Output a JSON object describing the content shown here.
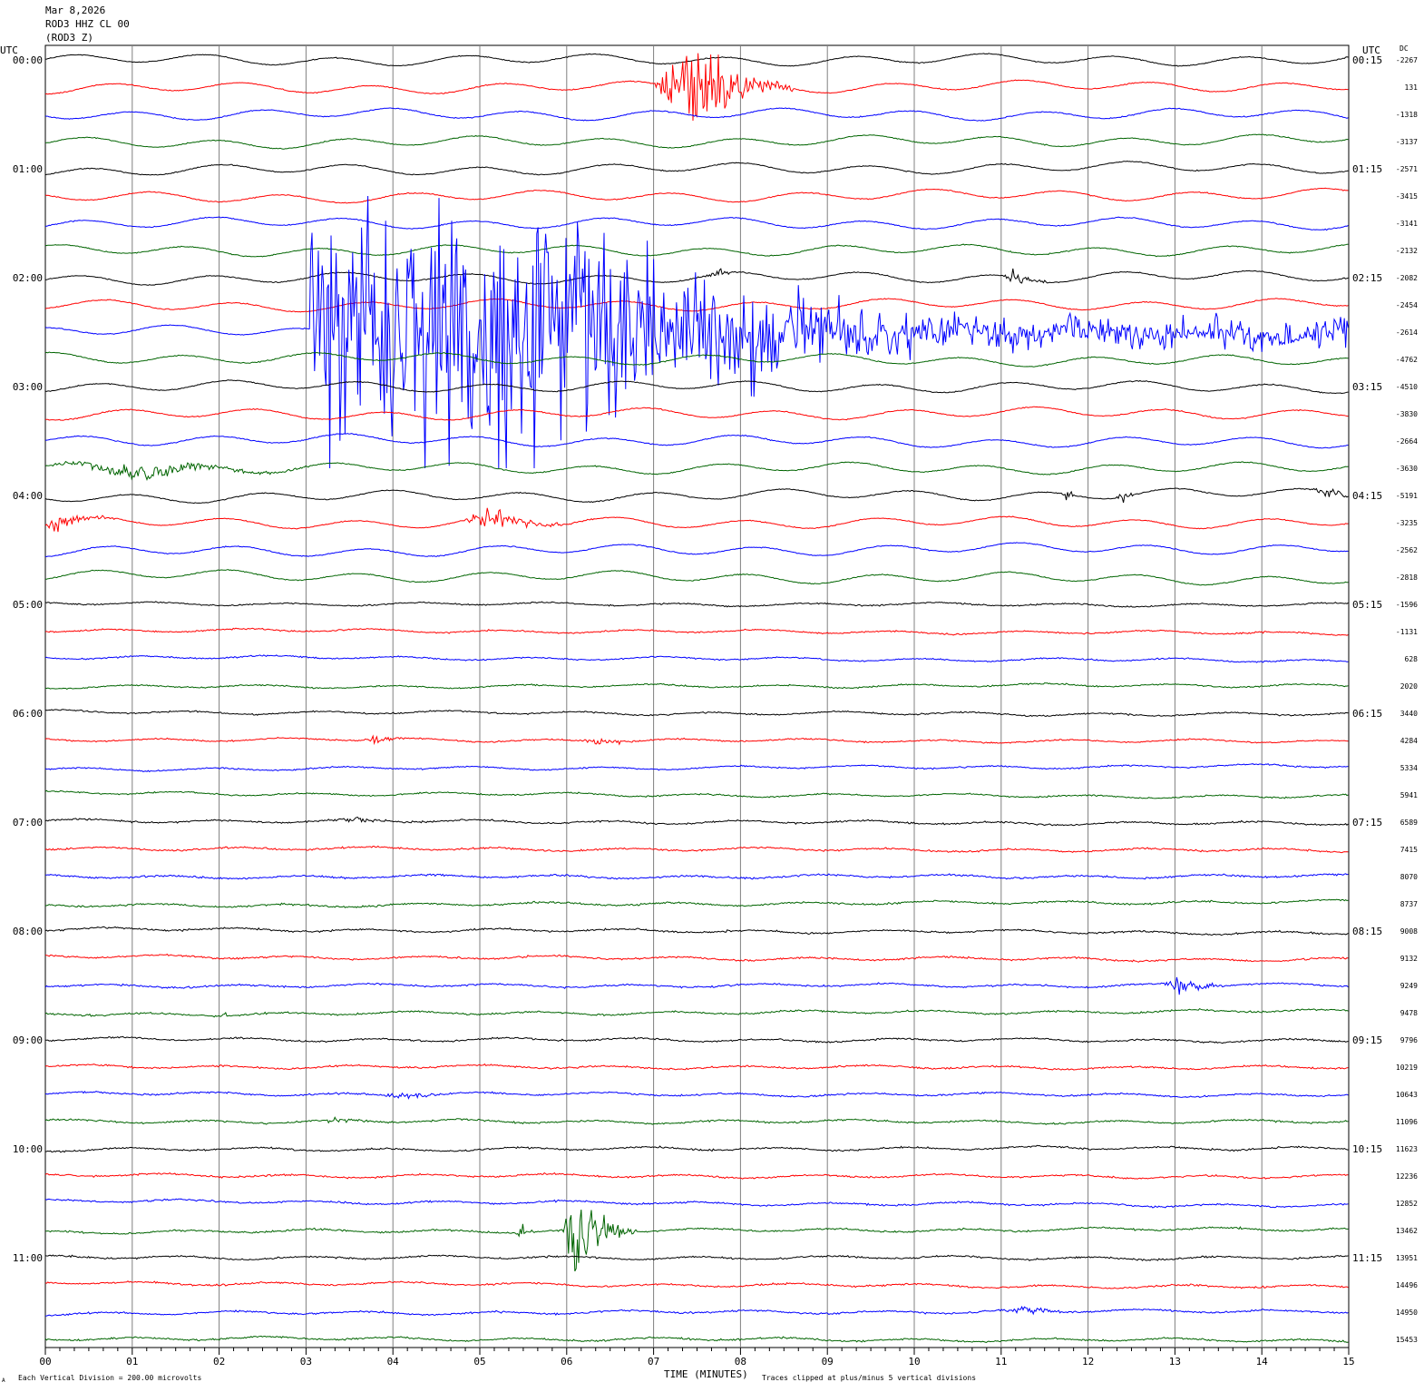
{
  "header": {
    "date": "Mar 8,2026",
    "station": "ROD3 HHZ CL 00",
    "component": "(ROD3 Z)"
  },
  "left_axis_title": "UTC",
  "right_axis_title": "UTC",
  "dc_title": "DC",
  "footer": {
    "scale_note": "Each Vertical Division =  200.00 microvolts",
    "clip_note": "Traces clipped at plus/minus 5 vertical divisions",
    "corner_mark": "A"
  },
  "colors": {
    "black": "#000000",
    "red": "#ff0000",
    "blue": "#0000ff",
    "green": "#006400",
    "grid": "#808080"
  },
  "chart_data": {
    "type": "line",
    "title": "",
    "xlabel": "TIME (MINUTES)",
    "ylabel": "",
    "x_range": [
      0,
      15
    ],
    "x_ticks": [
      "00",
      "01",
      "02",
      "03",
      "04",
      "05",
      "06",
      "07",
      "08",
      "09",
      "10",
      "11",
      "12",
      "13",
      "14",
      "15"
    ],
    "grid": true,
    "color_cycle": [
      "black",
      "red",
      "blue",
      "green"
    ],
    "left_time_labels": [
      "00:00",
      "01:00",
      "02:00",
      "03:00",
      "04:00",
      "05:00",
      "06:00",
      "07:00",
      "08:00",
      "09:00",
      "10:00",
      "11:00"
    ],
    "right_time_labels": [
      "00:15",
      "01:15",
      "02:15",
      "03:15",
      "04:15",
      "05:15",
      "06:15",
      "07:15",
      "08:15",
      "09:15",
      "10:15",
      "11:15"
    ],
    "dc_offsets": [
      "-2267",
      "131",
      "-1318",
      "-3137",
      "-2571",
      "-3415",
      "-3141",
      "-2132",
      "-2082",
      "-2454",
      "-2614",
      "-4762",
      "-4510",
      "-3830",
      "-2664",
      "-3630",
      "-5191",
      "-3235",
      "-2562",
      "-2818",
      "-1596",
      "-1131",
      "628",
      "2020",
      "3440",
      "4284",
      "5334",
      "5941",
      "6589",
      "7415",
      "8070",
      "8737",
      "9008",
      "9132",
      "9249",
      "9478",
      "9796",
      "10219",
      "10643",
      "11096",
      "11623",
      "12236",
      "12852",
      "13462",
      "13951",
      "14496",
      "14950",
      "15453"
    ],
    "events": [
      {
        "trace": 1,
        "start_min": 7.0,
        "end_min": 8.6,
        "peak_min": 7.42,
        "amplitude": "large",
        "color": "red"
      },
      {
        "trace": 8,
        "start_min": 7.5,
        "end_min": 8.1,
        "peak_min": 7.8,
        "amplitude": "small",
        "color": "black"
      },
      {
        "trace": 8,
        "start_min": 11.0,
        "end_min": 11.6,
        "peak_min": 11.15,
        "amplitude": "medium",
        "color": "black"
      },
      {
        "trace": 10,
        "start_min": 3.05,
        "end_min": 15.0,
        "peak_min": 3.1,
        "amplitude": "clipped",
        "color": "blue"
      },
      {
        "trace": 15,
        "start_min": 0.0,
        "end_min": 3.05,
        "peak_min": 1.0,
        "amplitude": "medium",
        "color": "green"
      },
      {
        "trace": 16,
        "start_min": 11.7,
        "end_min": 11.85,
        "peak_min": 11.75,
        "amplitude": "medium",
        "color": "black"
      },
      {
        "trace": 16,
        "start_min": 12.3,
        "end_min": 12.6,
        "peak_min": 12.4,
        "amplitude": "medium",
        "color": "black"
      },
      {
        "trace": 16,
        "start_min": 14.5,
        "end_min": 15.0,
        "peak_min": 14.8,
        "amplitude": "medium",
        "color": "black"
      },
      {
        "trace": 17,
        "start_min": 0.0,
        "end_min": 0.9,
        "peak_min": 0.1,
        "amplitude": "medium",
        "color": "red"
      },
      {
        "trace": 17,
        "start_min": 4.75,
        "end_min": 6.3,
        "peak_min": 5.1,
        "amplitude": "medium",
        "color": "red"
      },
      {
        "trace": 25,
        "start_min": 3.6,
        "end_min": 4.2,
        "peak_min": 3.8,
        "amplitude": "small",
        "color": "red"
      },
      {
        "trace": 25,
        "start_min": 6.0,
        "end_min": 7.0,
        "peak_min": 6.4,
        "amplitude": "small",
        "color": "red"
      },
      {
        "trace": 28,
        "start_min": 3.3,
        "end_min": 4.0,
        "peak_min": 3.6,
        "amplitude": "small",
        "color": "black"
      },
      {
        "trace": 34,
        "start_min": 12.8,
        "end_min": 13.7,
        "peak_min": 13.1,
        "amplitude": "medium",
        "color": "blue"
      },
      {
        "trace": 35,
        "start_min": 2.0,
        "end_min": 2.1,
        "peak_min": 2.05,
        "amplitude": "small",
        "color": "green"
      },
      {
        "trace": 38,
        "start_min": 3.8,
        "end_min": 4.8,
        "peak_min": 4.2,
        "amplitude": "small",
        "color": "blue"
      },
      {
        "trace": 39,
        "start_min": 3.2,
        "end_min": 3.8,
        "peak_min": 3.3,
        "amplitude": "small",
        "color": "green"
      },
      {
        "trace": 43,
        "start_min": 5.4,
        "end_min": 5.6,
        "peak_min": 5.48,
        "amplitude": "medium",
        "color": "green"
      },
      {
        "trace": 43,
        "start_min": 5.95,
        "end_min": 6.8,
        "peak_min": 6.03,
        "amplitude": "large",
        "color": "green"
      },
      {
        "trace": 46,
        "start_min": 10.9,
        "end_min": 11.8,
        "peak_min": 11.4,
        "amplitude": "small",
        "color": "blue"
      }
    ]
  }
}
